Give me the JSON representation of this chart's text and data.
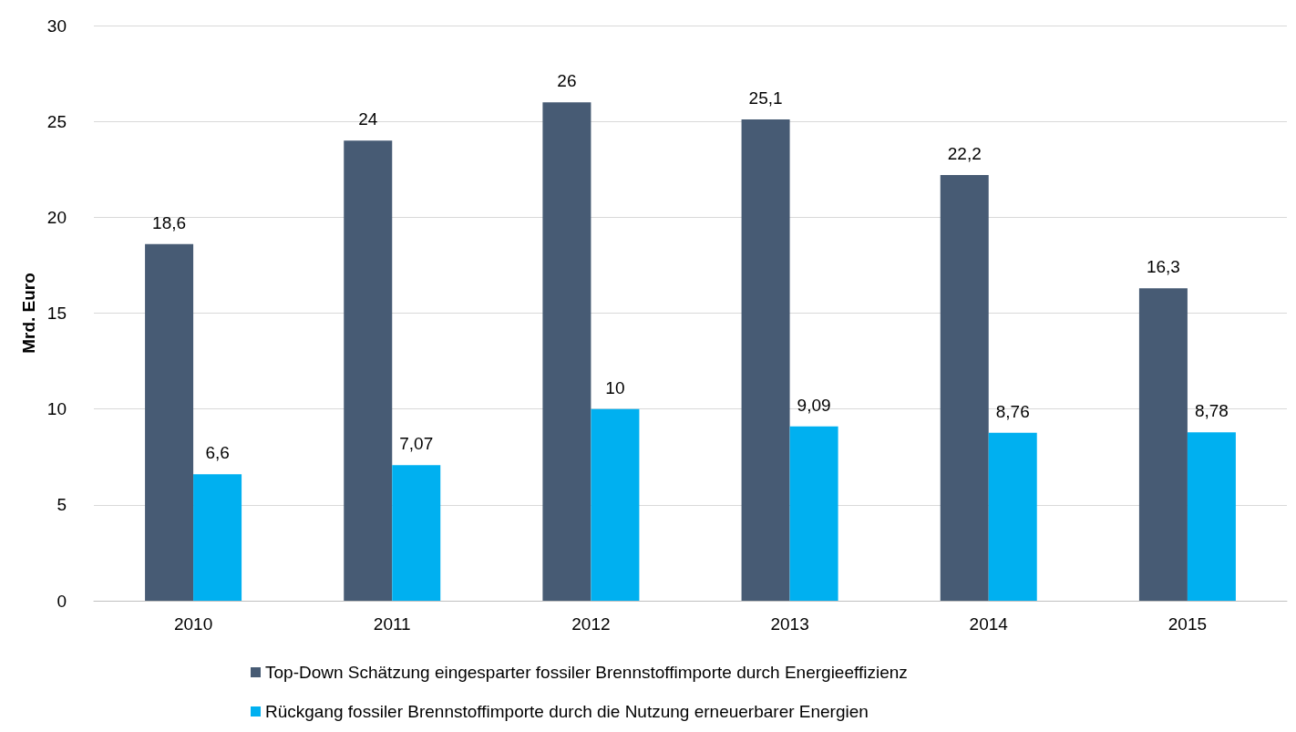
{
  "chart_data": {
    "type": "bar",
    "ylabel": "Mrd. Euro",
    "categories": [
      "2010",
      "2011",
      "2012",
      "2013",
      "2014",
      "2015"
    ],
    "series": [
      {
        "name": "Top-Down Schätzung eingesparter fossiler Brennstoffimporte durch Energieeffizienz",
        "color": "#475b74",
        "values": [
          18.6,
          24,
          26,
          25.1,
          22.2,
          16.3
        ],
        "value_labels": [
          "18,6",
          "24",
          "26",
          "25,1",
          "22,2",
          "16,3"
        ]
      },
      {
        "name": "Rückgang fossiler Brennstoffimporte durch die Nutzung erneuerbarer Energien",
        "color": "#00b0f0",
        "values": [
          6.6,
          7.07,
          10,
          9.09,
          8.76,
          8.78
        ],
        "value_labels": [
          "6,6",
          "7,07",
          "10",
          "9,09",
          "8,76",
          "8,78"
        ]
      }
    ],
    "ylim": [
      0,
      30
    ],
    "yticks": [
      0,
      5,
      10,
      15,
      20,
      25,
      30
    ],
    "grid": "y",
    "legend": "bottom"
  }
}
